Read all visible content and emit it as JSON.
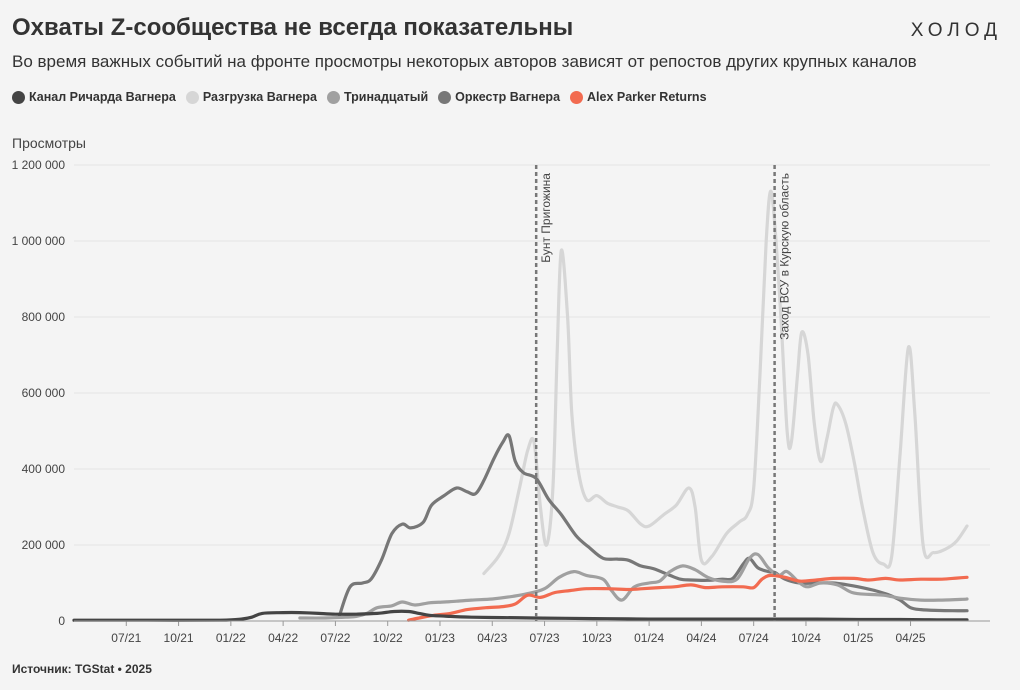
{
  "header": {
    "title": "Охваты Z-сообщества не всегда показательны",
    "logo": "ХОЛОД",
    "subtitle": "Во время важных событий на фронте просмотры некоторых авторов зависят от репостов других крупных каналов"
  },
  "footer": {
    "source": "Источник: TGStat • 2025"
  },
  "chart_data": {
    "type": "line",
    "ylabel": "Просмотры",
    "ylim": [
      0,
      1200000
    ],
    "yticks": [
      0,
      200000,
      400000,
      600000,
      800000,
      1000000,
      1200000
    ],
    "ytick_labels": [
      "0",
      "200 000",
      "400 000",
      "600 000",
      "800 000",
      "1 000 000",
      "1 200 000"
    ],
    "xlim": [
      2021.25,
      2025.63
    ],
    "xticks": [
      2021.5,
      2021.75,
      2022.0,
      2022.25,
      2022.5,
      2022.75,
      2023.0,
      2023.25,
      2023.5,
      2023.75,
      2024.0,
      2024.25,
      2024.5,
      2024.75,
      2025.0,
      2025.25
    ],
    "xtick_labels": [
      "07/21",
      "10/21",
      "01/22",
      "04/22",
      "07/22",
      "10/22",
      "01/23",
      "04/23",
      "07/23",
      "10/23",
      "01/24",
      "04/24",
      "07/24",
      "10/24",
      "01/25",
      "04/25"
    ],
    "events": [
      {
        "x": 2023.46,
        "label": "Бунт Пригожина"
      },
      {
        "x": 2024.6,
        "label": "Заход ВСУ в Курскую область"
      }
    ],
    "series": [
      {
        "name": "Разгрузка Вагнера",
        "color": "#d6d6d6",
        "points": [
          [
            2023.21,
            125000
          ],
          [
            2023.28,
            170000
          ],
          [
            2023.33,
            230000
          ],
          [
            2023.38,
            350000
          ],
          [
            2023.42,
            450000
          ],
          [
            2023.45,
            470000
          ],
          [
            2023.48,
            300000
          ],
          [
            2023.51,
            200000
          ],
          [
            2023.54,
            350000
          ],
          [
            2023.56,
            700000
          ],
          [
            2023.58,
            975000
          ],
          [
            2023.61,
            800000
          ],
          [
            2023.63,
            550000
          ],
          [
            2023.66,
            400000
          ],
          [
            2023.7,
            320000
          ],
          [
            2023.75,
            330000
          ],
          [
            2023.8,
            310000
          ],
          [
            2023.85,
            300000
          ],
          [
            2023.9,
            290000
          ],
          [
            2023.96,
            255000
          ],
          [
            2024.0,
            250000
          ],
          [
            2024.07,
            280000
          ],
          [
            2024.13,
            305000
          ],
          [
            2024.19,
            350000
          ],
          [
            2024.22,
            300000
          ],
          [
            2024.25,
            160000
          ],
          [
            2024.3,
            170000
          ],
          [
            2024.37,
            230000
          ],
          [
            2024.43,
            260000
          ],
          [
            2024.47,
            280000
          ],
          [
            2024.5,
            350000
          ],
          [
            2024.53,
            650000
          ],
          [
            2024.56,
            1000000
          ],
          [
            2024.58,
            1130000
          ],
          [
            2024.6,
            1050000
          ],
          [
            2024.63,
            800000
          ],
          [
            2024.66,
            500000
          ],
          [
            2024.68,
            470000
          ],
          [
            2024.71,
            650000
          ],
          [
            2024.73,
            760000
          ],
          [
            2024.76,
            700000
          ],
          [
            2024.79,
            520000
          ],
          [
            2024.82,
            420000
          ],
          [
            2024.85,
            480000
          ],
          [
            2024.88,
            560000
          ],
          [
            2024.9,
            570000
          ],
          [
            2024.94,
            520000
          ],
          [
            2024.98,
            420000
          ],
          [
            2025.02,
            300000
          ],
          [
            2025.07,
            180000
          ],
          [
            2025.12,
            150000
          ],
          [
            2025.16,
            170000
          ],
          [
            2025.2,
            440000
          ],
          [
            2025.24,
            720000
          ],
          [
            2025.27,
            550000
          ],
          [
            2025.31,
            200000
          ],
          [
            2025.36,
            180000
          ],
          [
            2025.42,
            190000
          ],
          [
            2025.47,
            210000
          ],
          [
            2025.52,
            250000
          ]
        ]
      },
      {
        "name": "Оркестр Вагнера",
        "color": "#777777",
        "points": [
          [
            2022.52,
            15000
          ],
          [
            2022.57,
            90000
          ],
          [
            2022.63,
            100000
          ],
          [
            2022.67,
            110000
          ],
          [
            2022.72,
            160000
          ],
          [
            2022.77,
            230000
          ],
          [
            2022.82,
            255000
          ],
          [
            2022.86,
            245000
          ],
          [
            2022.92,
            260000
          ],
          [
            2022.96,
            305000
          ],
          [
            2023.02,
            330000
          ],
          [
            2023.08,
            350000
          ],
          [
            2023.13,
            340000
          ],
          [
            2023.17,
            335000
          ],
          [
            2023.21,
            370000
          ],
          [
            2023.26,
            430000
          ],
          [
            2023.3,
            470000
          ],
          [
            2023.33,
            488000
          ],
          [
            2023.36,
            420000
          ],
          [
            2023.4,
            390000
          ],
          [
            2023.46,
            375000
          ],
          [
            2023.52,
            320000
          ],
          [
            2023.58,
            280000
          ],
          [
            2023.65,
            225000
          ],
          [
            2023.71,
            195000
          ],
          [
            2023.78,
            165000
          ],
          [
            2023.85,
            163000
          ],
          [
            2023.9,
            160000
          ],
          [
            2023.96,
            145000
          ],
          [
            2024.02,
            138000
          ],
          [
            2024.1,
            120000
          ],
          [
            2024.15,
            110000
          ],
          [
            2024.2,
            108000
          ],
          [
            2024.28,
            107000
          ],
          [
            2024.35,
            110000
          ],
          [
            2024.4,
            112000
          ],
          [
            2024.45,
            150000
          ],
          [
            2024.48,
            165000
          ],
          [
            2024.52,
            140000
          ],
          [
            2024.57,
            130000
          ],
          [
            2024.6,
            128000
          ],
          [
            2024.65,
            110000
          ],
          [
            2024.72,
            100000
          ],
          [
            2024.8,
            100000
          ],
          [
            2024.88,
            100000
          ],
          [
            2024.95,
            95000
          ],
          [
            2025.0,
            90000
          ],
          [
            2025.08,
            80000
          ],
          [
            2025.14,
            70000
          ],
          [
            2025.2,
            55000
          ],
          [
            2025.25,
            35000
          ],
          [
            2025.3,
            30000
          ],
          [
            2025.37,
            28000
          ],
          [
            2025.45,
            27000
          ],
          [
            2025.52,
            27000
          ]
        ]
      },
      {
        "name": "Тринадцатый",
        "color": "#a0a0a0",
        "points": [
          [
            2022.33,
            8000
          ],
          [
            2022.45,
            8000
          ],
          [
            2022.55,
            10000
          ],
          [
            2022.6,
            12000
          ],
          [
            2022.65,
            20000
          ],
          [
            2022.7,
            35000
          ],
          [
            2022.77,
            40000
          ],
          [
            2022.82,
            50000
          ],
          [
            2022.88,
            42000
          ],
          [
            2022.95,
            48000
          ],
          [
            2023.02,
            50000
          ],
          [
            2023.08,
            52000
          ],
          [
            2023.15,
            55000
          ],
          [
            2023.25,
            58000
          ],
          [
            2023.35,
            65000
          ],
          [
            2023.42,
            72000
          ],
          [
            2023.5,
            85000
          ],
          [
            2023.57,
            115000
          ],
          [
            2023.64,
            130000
          ],
          [
            2023.7,
            120000
          ],
          [
            2023.78,
            110000
          ],
          [
            2023.82,
            80000
          ],
          [
            2023.87,
            55000
          ],
          [
            2023.93,
            90000
          ],
          [
            2024.0,
            100000
          ],
          [
            2024.05,
            105000
          ],
          [
            2024.1,
            130000
          ],
          [
            2024.16,
            145000
          ],
          [
            2024.22,
            135000
          ],
          [
            2024.28,
            115000
          ],
          [
            2024.35,
            105000
          ],
          [
            2024.42,
            110000
          ],
          [
            2024.48,
            165000
          ],
          [
            2024.52,
            175000
          ],
          [
            2024.57,
            140000
          ],
          [
            2024.62,
            120000
          ],
          [
            2024.66,
            130000
          ],
          [
            2024.72,
            100000
          ],
          [
            2024.76,
            90000
          ],
          [
            2024.82,
            100000
          ],
          [
            2024.9,
            95000
          ],
          [
            2024.97,
            75000
          ],
          [
            2025.05,
            70000
          ],
          [
            2025.12,
            68000
          ],
          [
            2025.2,
            60000
          ],
          [
            2025.3,
            55000
          ],
          [
            2025.4,
            55000
          ],
          [
            2025.5,
            57000
          ],
          [
            2025.52,
            58000
          ]
        ]
      },
      {
        "name": "Alex Parker Returns",
        "color": "#f26b50",
        "points": [
          [
            2022.85,
            2000
          ],
          [
            2022.9,
            8000
          ],
          [
            2022.97,
            15000
          ],
          [
            2023.05,
            20000
          ],
          [
            2023.13,
            30000
          ],
          [
            2023.22,
            35000
          ],
          [
            2023.3,
            38000
          ],
          [
            2023.36,
            45000
          ],
          [
            2023.42,
            68000
          ],
          [
            2023.48,
            62000
          ],
          [
            2023.55,
            75000
          ],
          [
            2023.62,
            80000
          ],
          [
            2023.7,
            85000
          ],
          [
            2023.8,
            85000
          ],
          [
            2023.9,
            83000
          ],
          [
            2023.97,
            85000
          ],
          [
            2024.05,
            88000
          ],
          [
            2024.12,
            90000
          ],
          [
            2024.2,
            95000
          ],
          [
            2024.27,
            88000
          ],
          [
            2024.35,
            90000
          ],
          [
            2024.45,
            90000
          ],
          [
            2024.5,
            88000
          ],
          [
            2024.54,
            110000
          ],
          [
            2024.58,
            120000
          ],
          [
            2024.65,
            115000
          ],
          [
            2024.72,
            105000
          ],
          [
            2024.8,
            108000
          ],
          [
            2024.88,
            112000
          ],
          [
            2024.98,
            112000
          ],
          [
            2025.05,
            108000
          ],
          [
            2025.13,
            112000
          ],
          [
            2025.2,
            108000
          ],
          [
            2025.3,
            110000
          ],
          [
            2025.4,
            110000
          ],
          [
            2025.47,
            113000
          ],
          [
            2025.52,
            115000
          ]
        ]
      },
      {
        "name": "Канал Ричарда Вагнера",
        "color": "#444444",
        "points": [
          [
            2021.25,
            2000
          ],
          [
            2021.6,
            2000
          ],
          [
            2021.95,
            2000
          ],
          [
            2022.05,
            5000
          ],
          [
            2022.1,
            10000
          ],
          [
            2022.15,
            20000
          ],
          [
            2022.25,
            22000
          ],
          [
            2022.33,
            22000
          ],
          [
            2022.42,
            20000
          ],
          [
            2022.5,
            18000
          ],
          [
            2022.6,
            18000
          ],
          [
            2022.7,
            20000
          ],
          [
            2022.78,
            25000
          ],
          [
            2022.85,
            25000
          ],
          [
            2022.9,
            20000
          ],
          [
            2022.95,
            15000
          ],
          [
            2023.05,
            12000
          ],
          [
            2023.15,
            10000
          ],
          [
            2023.3,
            9000
          ],
          [
            2023.45,
            8000
          ],
          [
            2023.6,
            7000
          ],
          [
            2023.8,
            6000
          ],
          [
            2024.0,
            5000
          ],
          [
            2024.2,
            5000
          ],
          [
            2024.4,
            5000
          ],
          [
            2024.6,
            5000
          ],
          [
            2024.8,
            5000
          ],
          [
            2025.0,
            4000
          ],
          [
            2025.2,
            4000
          ],
          [
            2025.4,
            3000
          ],
          [
            2025.52,
            3000
          ]
        ]
      }
    ]
  }
}
